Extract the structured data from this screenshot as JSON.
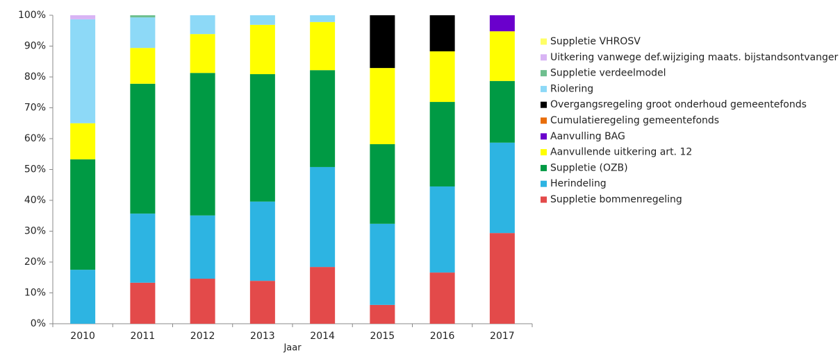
{
  "chart_data": {
    "type": "stacked_bar",
    "x_label": "Jaar",
    "categories": [
      "2010",
      "2011",
      "2012",
      "2013",
      "2014",
      "2015",
      "2016",
      "2017"
    ],
    "series": [
      {
        "name": "Suppletie bommenregeling",
        "color": "#e34a4a",
        "values": [
          0,
          13.3,
          14.6,
          13.9,
          18.4,
          6.1,
          16.6,
          29.4
        ]
      },
      {
        "name": "Herindeling",
        "color": "#2db4e2",
        "values": [
          17.5,
          22.4,
          20.5,
          25.7,
          32.4,
          26.3,
          27.9,
          29.3
        ]
      },
      {
        "name": "Suppletie (OZB)",
        "color": "#009a44",
        "values": [
          35.8,
          42.1,
          46.2,
          41.3,
          31.4,
          25.8,
          27.4,
          20
        ]
      },
      {
        "name": "Aanvullende uitkering art. 12",
        "color": "#ffff00",
        "values": [
          11.7,
          11.6,
          12.6,
          16,
          15.6,
          24.7,
          16.4,
          16.1
        ]
      },
      {
        "name": "Aanvulling BAG",
        "color": "#6a00cc",
        "values": [
          0,
          0,
          0,
          0,
          0,
          0,
          0,
          5.2
        ]
      },
      {
        "name": "Cumulatieregeling gemeentefonds",
        "color": "#e86d0a",
        "values": [
          0,
          0,
          0,
          0,
          0,
          0,
          0,
          0
        ]
      },
      {
        "name": "Overgangsregeling groot onderhoud gemeentefonds",
        "color": "#000000",
        "values": [
          0,
          0,
          0,
          0,
          0,
          17.1,
          11.7,
          0
        ]
      },
      {
        "name": "Riolering",
        "color": "#8dd9f7",
        "values": [
          33.7,
          9.9,
          6.1,
          3.1,
          2.2,
          0,
          0,
          0
        ]
      },
      {
        "name": "Suppletie verdeelmodel",
        "color": "#6fbf8f",
        "values": [
          0,
          0.7,
          0,
          0,
          0,
          0,
          0,
          0
        ]
      },
      {
        "name": "Uitkering vanwege def.wijziging maats. bijstandsontvanger",
        "color": "#d8b4f4",
        "values": [
          1.3,
          0,
          0,
          0,
          0,
          0,
          0,
          0
        ]
      },
      {
        "name": "Suppletie VHROSV",
        "color": "#ffff66",
        "values": [
          0,
          0,
          0,
          0,
          0,
          0,
          0,
          0
        ]
      }
    ],
    "ylim": [
      0,
      100
    ],
    "yticks": [
      {
        "value": 0,
        "label": "0%"
      },
      {
        "value": 10,
        "label": "10%"
      },
      {
        "value": 20,
        "label": "20%"
      },
      {
        "value": 30,
        "label": "30%"
      },
      {
        "value": 40,
        "label": "40%"
      },
      {
        "value": 50,
        "label": "50%"
      },
      {
        "value": 60,
        "label": "60%"
      },
      {
        "value": 70,
        "label": "70%"
      },
      {
        "value": 80,
        "label": "80%"
      },
      {
        "value": 90,
        "label": "90%"
      },
      {
        "value": 100,
        "label": "100%"
      }
    ],
    "legend": "right"
  }
}
